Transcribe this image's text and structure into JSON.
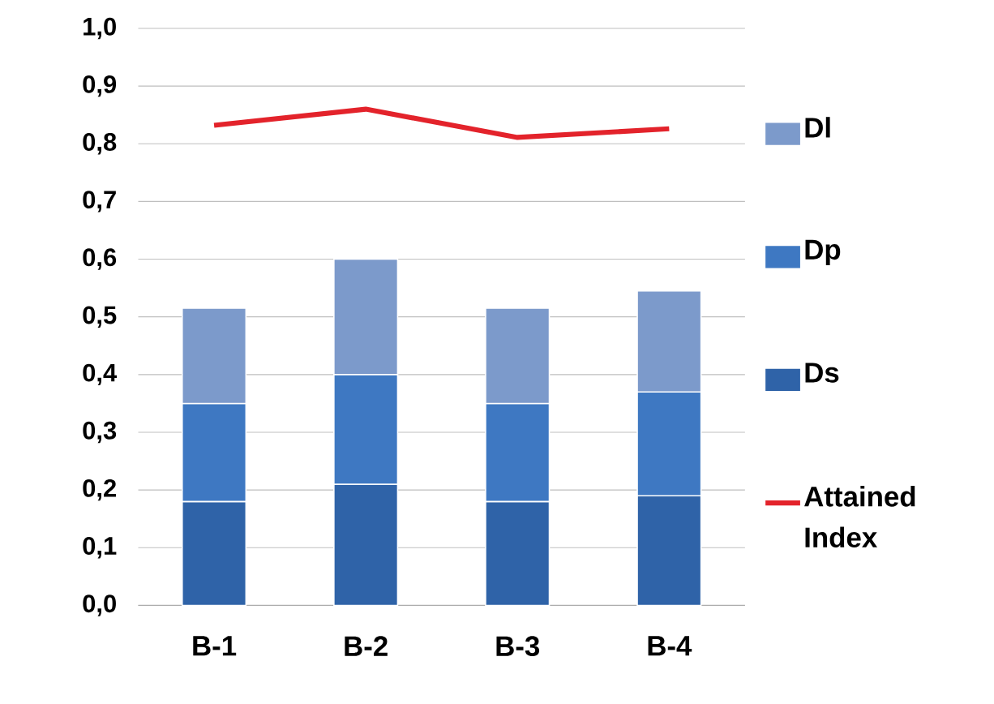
{
  "chart_data": {
    "type": "bar",
    "stacked": true,
    "categories": [
      "B-1",
      "B-2",
      "B-3",
      "B-4"
    ],
    "series": [
      {
        "name": "Ds",
        "color": "#2f63a8",
        "values": [
          0.18,
          0.21,
          0.18,
          0.19
        ]
      },
      {
        "name": "Dp",
        "color": "#3e78c2",
        "values": [
          0.17,
          0.19,
          0.17,
          0.18
        ]
      },
      {
        "name": "Dl",
        "color": "#7c9acb",
        "values": [
          0.165,
          0.2,
          0.165,
          0.175
        ]
      },
      {
        "name": "Attained Index",
        "type": "line",
        "color": "#e3232b",
        "values": [
          0.832,
          0.86,
          0.811,
          0.826
        ]
      }
    ],
    "ylim": [
      0,
      1
    ],
    "yticks": [
      {
        "value": 0,
        "label": "0,0"
      },
      {
        "value": 0.1,
        "label": "0,1"
      },
      {
        "value": 0.2,
        "label": "0,2"
      },
      {
        "value": 0.3,
        "label": "0,3"
      },
      {
        "value": 0.4,
        "label": "0,4"
      },
      {
        "value": 0.5,
        "label": "0,5"
      },
      {
        "value": 0.6,
        "label": "0,6"
      },
      {
        "value": 0.7,
        "label": "0,7"
      },
      {
        "value": 0.8,
        "label": "0,8"
      },
      {
        "value": 0.9,
        "label": "0,9"
      },
      {
        "value": 1,
        "label": "1,0"
      }
    ],
    "grid": "y",
    "legend": "right"
  }
}
